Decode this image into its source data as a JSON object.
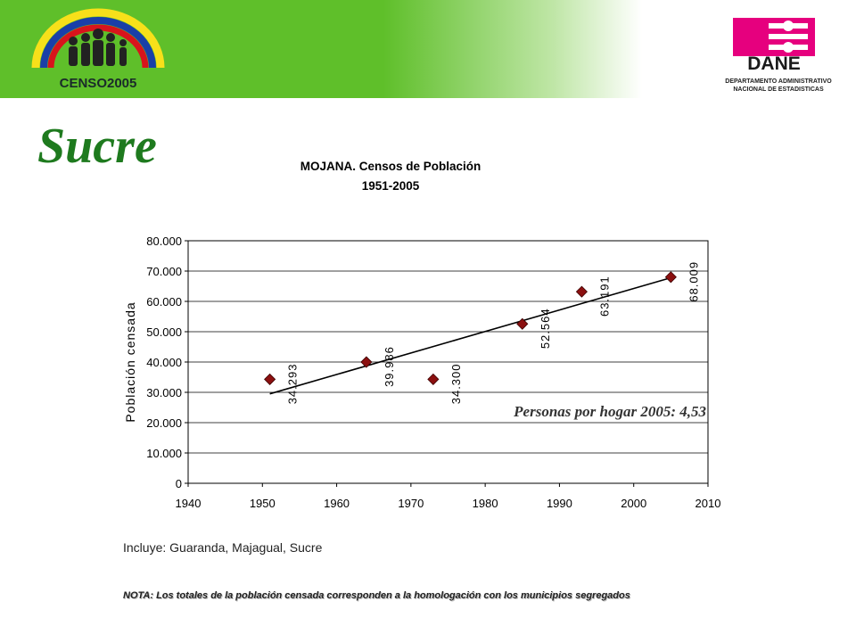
{
  "header": {
    "censo_logo_text": "CENSO2005",
    "dane_logo_text": "DANE",
    "dane_subtitle_line1": "DEPARTAMENTO ADMINISTRATIVO",
    "dane_subtitle_line2": "NACIONAL DE ESTADISTICAS"
  },
  "region_title": "Sucre",
  "footer": {
    "includes": "Incluye: Guaranda, Majagual, Sucre",
    "note": "NOTA: Los totales de la población censada corresponden a la homologación con los municipios segregados"
  },
  "colors": {
    "header_green": "#5fbf2a",
    "title_green": "#1e7a1e",
    "marker": "#8b1010",
    "dane_magenta": "#e6007e"
  },
  "chart_data": {
    "type": "scatter",
    "title": "MOJANA. Censos de Población",
    "subtitle": "1951-2005",
    "xlabel": "",
    "ylabel": "Población censada",
    "xlim": [
      1940,
      2010
    ],
    "ylim": [
      0,
      80000
    ],
    "x_ticks": [
      "1940",
      "1950",
      "1960",
      "1970",
      "1980",
      "1990",
      "2000",
      "2010"
    ],
    "y_ticks": [
      "0",
      "10.000",
      "20.000",
      "30.000",
      "40.000",
      "50.000",
      "60.000",
      "70.000",
      "80.000"
    ],
    "points": [
      {
        "x": 1951,
        "y": 34293,
        "label": "34.293"
      },
      {
        "x": 1964,
        "y": 39986,
        "label": "39.986"
      },
      {
        "x": 1973,
        "y": 34300,
        "label": "34.300"
      },
      {
        "x": 1985,
        "y": 52564,
        "label": "52.564"
      },
      {
        "x": 1993,
        "y": 63191,
        "label": "63.191"
      },
      {
        "x": 2005,
        "y": 68009,
        "label": "68.009"
      }
    ],
    "trendline": {
      "x": [
        1951,
        2005
      ],
      "y": [
        29500,
        67800
      ]
    },
    "annotation": "Personas por hogar 2005: 4,53",
    "grid": true
  }
}
